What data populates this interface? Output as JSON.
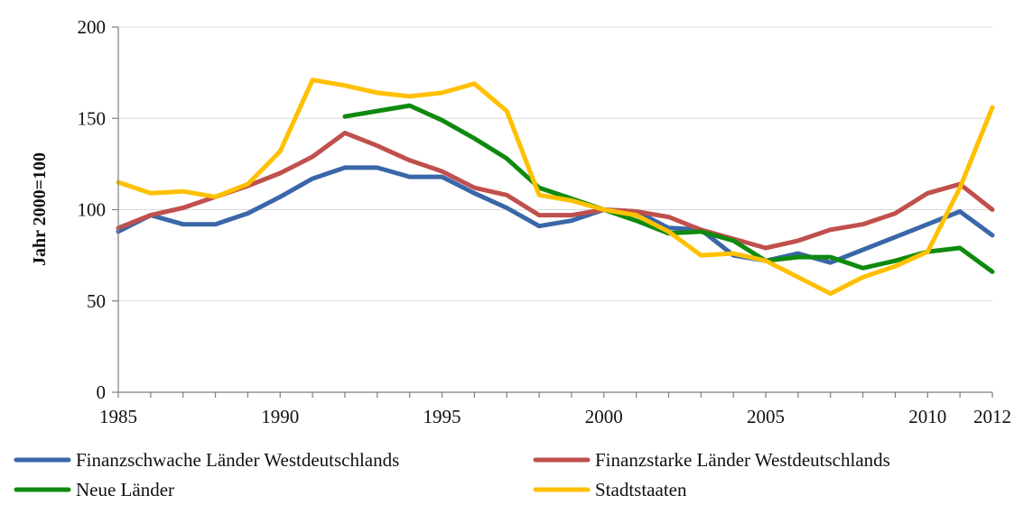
{
  "chart_data": {
    "type": "line",
    "title": "",
    "xlabel": "",
    "ylabel": "Jahr 2000=100",
    "ylim": [
      0,
      200
    ],
    "yticks": [
      0,
      50,
      100,
      150,
      200
    ],
    "xlim": [
      1985,
      2012
    ],
    "xticks": [
      1985,
      1990,
      1995,
      2000,
      2005,
      2010,
      2012
    ],
    "grid": "horizontal",
    "legend": "bottom",
    "x": [
      1985,
      1986,
      1987,
      1988,
      1989,
      1990,
      1991,
      1992,
      1993,
      1994,
      1995,
      1996,
      1997,
      1998,
      1999,
      2000,
      2001,
      2002,
      2003,
      2004,
      2005,
      2006,
      2007,
      2008,
      2009,
      2010,
      2011,
      2012
    ],
    "series": [
      {
        "name": "Finanzschwache Länder Westdeutschlands",
        "color": "#3a67a8",
        "values": [
          88,
          97,
          92,
          92,
          98,
          107,
          117,
          123,
          123,
          118,
          118,
          109,
          101,
          91,
          94,
          100,
          99,
          90,
          89,
          75,
          72,
          76,
          71,
          78,
          85,
          92,
          99,
          86
        ]
      },
      {
        "name": "Finanzstarke Länder Westdeutschlands",
        "color": "#c0504d",
        "values": [
          90,
          97,
          101,
          107,
          113,
          120,
          129,
          142,
          135,
          127,
          121,
          112,
          108,
          97,
          97,
          100,
          99,
          96,
          89,
          84,
          79,
          83,
          89,
          92,
          98,
          109,
          114,
          100
        ]
      },
      {
        "name": "Neue Länder",
        "color": "#0f8a0f",
        "values": [
          null,
          null,
          null,
          null,
          null,
          null,
          null,
          151,
          154,
          157,
          149,
          139,
          128,
          112,
          106,
          100,
          94,
          87,
          88,
          83,
          72,
          74,
          74,
          68,
          72,
          77,
          79,
          66
        ]
      },
      {
        "name": "Stadtstaaten",
        "color": "#ffc000",
        "values": [
          115,
          109,
          110,
          107,
          114,
          132,
          171,
          168,
          164,
          162,
          164,
          169,
          154,
          108,
          105,
          100,
          97,
          88,
          75,
          76,
          72,
          63,
          54,
          63,
          69,
          77,
          112,
          156
        ]
      }
    ]
  }
}
